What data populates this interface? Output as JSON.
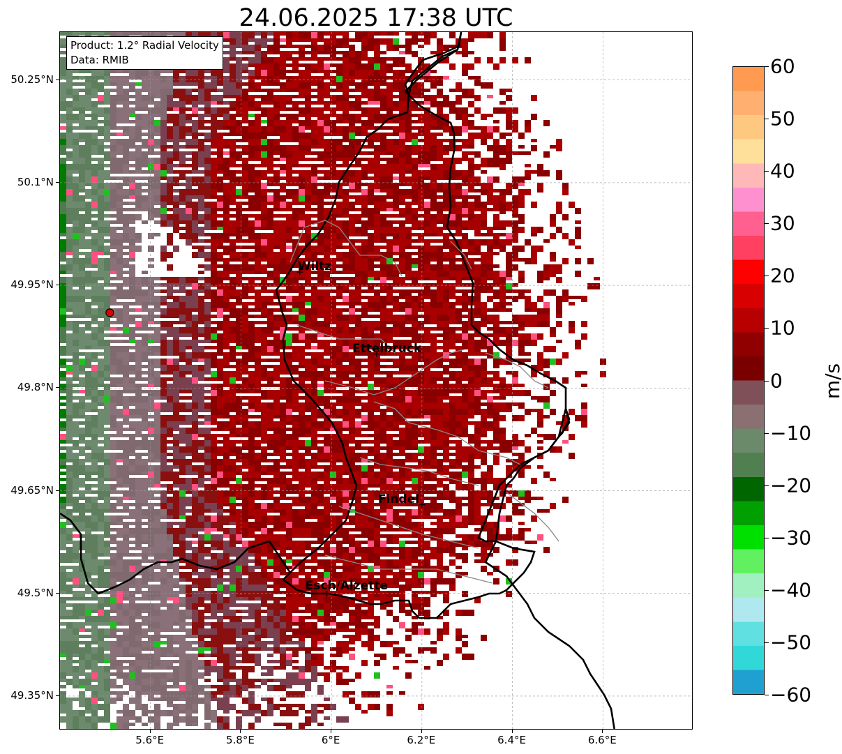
{
  "title": "24.06.2025 17:38 UTC",
  "info": {
    "product": "Product: 1.2° Radial Velocity",
    "source": "Data: RMIB"
  },
  "axes": {
    "lat_ticks": [
      "50.25°N",
      "50.1°N",
      "49.95°N",
      "49.8°N",
      "49.65°N",
      "49.5°N",
      "49.35°N"
    ],
    "lon_ticks": [
      "5.6°E",
      "5.8°E",
      "6°E",
      "6.2°E",
      "6.4°E",
      "6.6°E"
    ],
    "lat_values": [
      50.25,
      50.1,
      49.95,
      49.8,
      49.65,
      49.5,
      49.35
    ],
    "lon_values": [
      5.6,
      5.8,
      6.0,
      6.2,
      6.4,
      6.6
    ]
  },
  "cities": [
    {
      "name": "Wiltz",
      "lon": 5.93,
      "lat": 49.97
    },
    {
      "name": "Ettelbruck",
      "lon": 6.1,
      "lat": 49.85
    },
    {
      "name": "Findel",
      "lon": 6.2,
      "lat": 49.63
    },
    {
      "name": "Esch/Alzette",
      "lon": 5.99,
      "lat": 49.5
    }
  ],
  "radar_site": {
    "lon": 5.51,
    "lat": 49.91,
    "color": "#e00000"
  },
  "colorbar": {
    "unit": "m/s",
    "ticks": [
      "60",
      "50",
      "40",
      "30",
      "20",
      "10",
      "0",
      "−10",
      "−20",
      "−30",
      "−40",
      "−50",
      "−60"
    ],
    "tick_values": [
      60,
      50,
      40,
      30,
      20,
      10,
      0,
      -10,
      -20,
      -30,
      -40,
      -50,
      -60
    ],
    "colors": [
      "#ff9a50",
      "#ffb070",
      "#ffc880",
      "#ffe09a",
      "#ffb8b8",
      "#ff90d0",
      "#ff6090",
      "#ff4060",
      "#ff0000",
      "#d80000",
      "#b80000",
      "#900000",
      "#7a0000",
      "#805058",
      "#8a7070",
      "#6a8a6a",
      "#508050",
      "#006600",
      "#00a000",
      "#00e000",
      "#60f060",
      "#a0f0c0",
      "#b0e8f0",
      "#60e0e0",
      "#30d8d8",
      "#20a0d0"
    ]
  }
}
